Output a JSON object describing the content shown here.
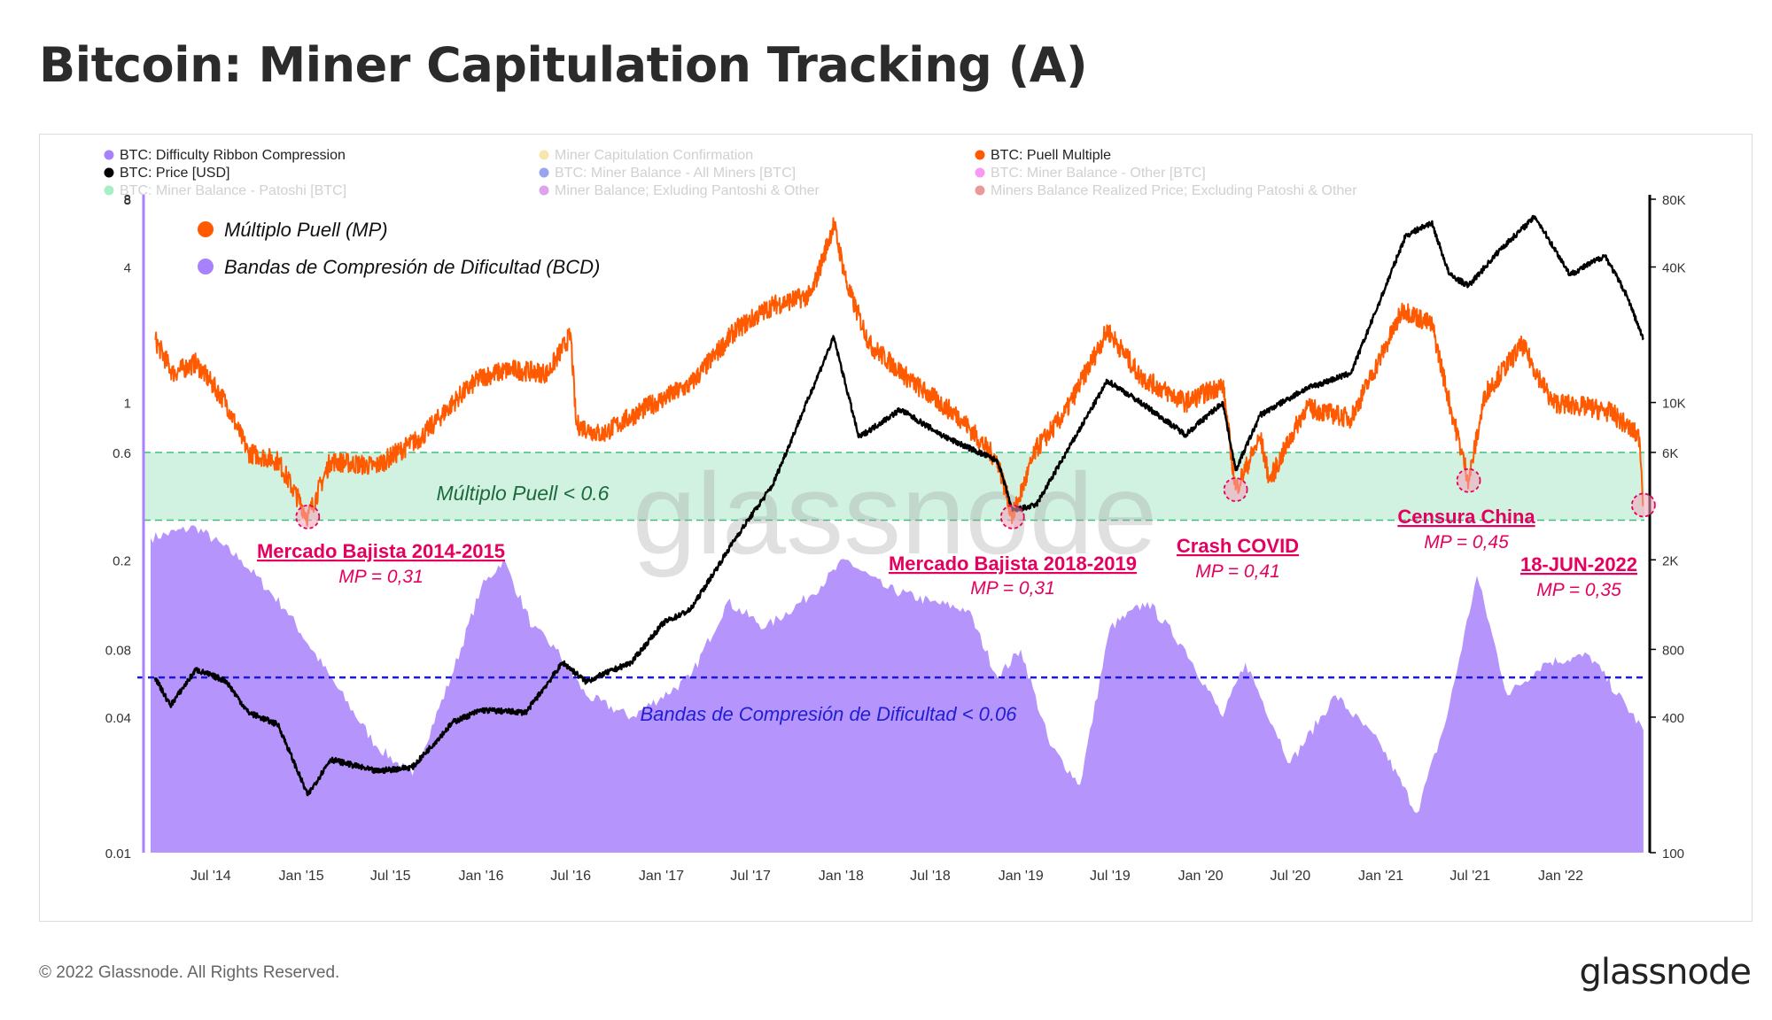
{
  "title": "Bitcoin: Miner Capitulation Tracking (A)",
  "footer": {
    "copyright": "© 2022 Glassnode. All Rights Reserved.",
    "logo": "glassnode"
  },
  "colors": {
    "puell": "#ff5a00",
    "price": "#000000",
    "ribbon": "#a881fc",
    "band_fill": "#c9f0dc",
    "band_line": "#3fbf7f",
    "ribbon_threshold": "#1a1ad6",
    "annotation": "#e5005f",
    "puell_band_text": "#1d6a3d",
    "ribbon_text": "#1f1fd0"
  },
  "chart_data": {
    "type": "line",
    "legend_location": "top",
    "legend": [
      {
        "label": "BTC: Difficulty Ribbon Compression",
        "color": "#a881fc",
        "faded": false
      },
      {
        "label": "Miner Capitulation Confirmation",
        "color": "#f2c94c",
        "faded": true
      },
      {
        "label": "BTC: Puell Multiple",
        "color": "#ff5a00",
        "faded": false
      },
      {
        "label": "BTC: Price [USD]",
        "color": "#000000",
        "faded": false
      },
      {
        "label": "BTC: Miner Balance - All Miners [BTC]",
        "color": "#1a3cd6",
        "faded": true
      },
      {
        "label": "BTC: Miner Balance - Other [BTC]",
        "color": "#f51ee5",
        "faded": true
      },
      {
        "label": "BTC: Miner Balance - Patoshi [BTC]",
        "color": "#3ddc84",
        "faded": true
      },
      {
        "label": "Miner Balance; Exluding Pantoshi & Other",
        "color": "#b038d6",
        "faded": true
      },
      {
        "label": "Miners Balance Realized Price; Excluding Patoshi & Other",
        "color": "#d11f1f",
        "faded": true
      }
    ],
    "inset_legend": [
      {
        "label": "Múltiplo Puell (MP)",
        "color": "#ff5a00"
      },
      {
        "label": "Bandas de Compresión de Dificultad  (BCD)",
        "color": "#a881fc"
      }
    ],
    "x_ticks": [
      "Jul '14",
      "Jan '15",
      "Jul '15",
      "Jan '16",
      "Jul '16",
      "Jan '17",
      "Jul '17",
      "Jan '18",
      "Jul '18",
      "Jan '19",
      "Jul '19",
      "Jan '20",
      "Jul '20",
      "Jan '21",
      "Jul '21",
      "Jan '22"
    ],
    "x_range": [
      "2014-03-01",
      "2022-06-20"
    ],
    "y_left": {
      "scale": "log",
      "range": [
        0.01,
        8
      ],
      "ticks": [
        {
          "v": 8,
          "label": "8"
        },
        {
          "v": 4,
          "label": "4"
        },
        {
          "v": 1,
          "label": "1"
        },
        {
          "v": 0.6,
          "label": "0.6"
        },
        {
          "v": 0.2,
          "label": "0.2"
        },
        {
          "v": 0.08,
          "label": "0.08"
        },
        {
          "v": 0.04,
          "label": "0.04"
        },
        {
          "v": 0.01,
          "label": "0.01"
        }
      ]
    },
    "y_right": {
      "scale": "log",
      "range": [
        100,
        80000
      ],
      "ticks": [
        {
          "v": 80000,
          "label": "80K"
        },
        {
          "v": 40000,
          "label": "40K"
        },
        {
          "v": 10000,
          "label": "10K"
        },
        {
          "v": 6000,
          "label": "6K"
        },
        {
          "v": 2000,
          "label": "2K"
        },
        {
          "v": 800,
          "label": "800"
        },
        {
          "v": 400,
          "label": "400"
        },
        {
          "v": 100,
          "label": "100"
        }
      ]
    },
    "puell_band": {
      "range": [
        0.3,
        0.6
      ],
      "label": "Múltiplo Puell < 0.6"
    },
    "ribbon_threshold": {
      "value": 0.06,
      "label": "Bandas de Compresión de Dificultad < 0.06"
    },
    "watermark": "glassnode",
    "series": [
      {
        "name": "BTC: Puell Multiple",
        "axis": "left",
        "points": [
          [
            "2014-03-10",
            1.9
          ],
          [
            "2014-04-15",
            1.35
          ],
          [
            "2014-06-01",
            1.5
          ],
          [
            "2014-08-01",
            1.0
          ],
          [
            "2014-09-15",
            0.6
          ],
          [
            "2014-11-15",
            0.55
          ],
          [
            "2015-01-14",
            0.31
          ],
          [
            "2015-03-01",
            0.55
          ],
          [
            "2015-06-01",
            0.52
          ],
          [
            "2015-09-01",
            0.7
          ],
          [
            "2015-11-15",
            1.05
          ],
          [
            "2016-01-01",
            1.3
          ],
          [
            "2016-03-01",
            1.4
          ],
          [
            "2016-05-15",
            1.35
          ],
          [
            "2016-07-01",
            2.0
          ],
          [
            "2016-07-12",
            0.8
          ],
          [
            "2016-09-01",
            0.72
          ],
          [
            "2016-12-01",
            0.95
          ],
          [
            "2017-03-01",
            1.2
          ],
          [
            "2017-06-01",
            2.1
          ],
          [
            "2017-08-15",
            2.7
          ],
          [
            "2017-11-01",
            3.0
          ],
          [
            "2017-12-17",
            6.2
          ],
          [
            "2018-01-15",
            3.2
          ],
          [
            "2018-03-01",
            1.8
          ],
          [
            "2018-06-01",
            1.2
          ],
          [
            "2018-09-01",
            0.85
          ],
          [
            "2018-11-15",
            0.55
          ],
          [
            "2018-12-15",
            0.31
          ],
          [
            "2019-02-01",
            0.62
          ],
          [
            "2019-04-01",
            0.9
          ],
          [
            "2019-06-26",
            2.1
          ],
          [
            "2019-09-01",
            1.3
          ],
          [
            "2019-12-01",
            1.0
          ],
          [
            "2020-02-15",
            1.2
          ],
          [
            "2020-03-12",
            0.41
          ],
          [
            "2020-05-01",
            0.7
          ],
          [
            "2020-05-20",
            0.45
          ],
          [
            "2020-08-01",
            0.95
          ],
          [
            "2020-11-01",
            0.85
          ],
          [
            "2021-01-01",
            1.6
          ],
          [
            "2021-02-15",
            2.6
          ],
          [
            "2021-04-15",
            2.2
          ],
          [
            "2021-05-20",
            1.0
          ],
          [
            "2021-06-28",
            0.45
          ],
          [
            "2021-08-01",
            1.1
          ],
          [
            "2021-10-15",
            1.8
          ],
          [
            "2021-12-15",
            1.0
          ],
          [
            "2022-03-01",
            0.95
          ],
          [
            "2022-04-15",
            0.9
          ],
          [
            "2022-06-10",
            0.7
          ],
          [
            "2022-06-18",
            0.35
          ]
        ]
      },
      {
        "name": "BTC: Price [USD]",
        "axis": "right",
        "points": [
          [
            "2014-03-10",
            600
          ],
          [
            "2014-04-10",
            450
          ],
          [
            "2014-06-01",
            650
          ],
          [
            "2014-08-01",
            580
          ],
          [
            "2014-09-15",
            420
          ],
          [
            "2014-11-15",
            370
          ],
          [
            "2015-01-14",
            180
          ],
          [
            "2015-03-01",
            260
          ],
          [
            "2015-06-01",
            230
          ],
          [
            "2015-08-15",
            240
          ],
          [
            "2015-11-05",
            380
          ],
          [
            "2016-01-01",
            430
          ],
          [
            "2016-04-01",
            420
          ],
          [
            "2016-06-15",
            700
          ],
          [
            "2016-08-01",
            575
          ],
          [
            "2016-11-01",
            700
          ],
          [
            "2017-01-05",
            1050
          ],
          [
            "2017-03-01",
            1200
          ],
          [
            "2017-06-01",
            2500
          ],
          [
            "2017-08-15",
            4300
          ],
          [
            "2017-12-17",
            19500
          ],
          [
            "2018-02-06",
            7000
          ],
          [
            "2018-05-01",
            9300
          ],
          [
            "2018-08-01",
            7000
          ],
          [
            "2018-11-15",
            5500
          ],
          [
            "2018-12-15",
            3300
          ],
          [
            "2019-02-01",
            3500
          ],
          [
            "2019-06-26",
            12500
          ],
          [
            "2019-09-01",
            10000
          ],
          [
            "2019-12-01",
            7200
          ],
          [
            "2020-02-15",
            10000
          ],
          [
            "2020-03-12",
            5000
          ],
          [
            "2020-05-01",
            8800
          ],
          [
            "2020-08-01",
            11500
          ],
          [
            "2020-11-01",
            13500
          ],
          [
            "2021-01-01",
            29000
          ],
          [
            "2021-02-20",
            55000
          ],
          [
            "2021-04-14",
            63000
          ],
          [
            "2021-05-20",
            37000
          ],
          [
            "2021-06-28",
            33000
          ],
          [
            "2021-09-01",
            48000
          ],
          [
            "2021-11-10",
            67000
          ],
          [
            "2022-01-20",
            37000
          ],
          [
            "2022-04-01",
            45000
          ],
          [
            "2022-05-15",
            30000
          ],
          [
            "2022-06-18",
            19000
          ]
        ]
      },
      {
        "name": "BTC: Difficulty Ribbon Compression",
        "axis": "left",
        "type": "area",
        "points": [
          [
            "2014-03-01",
            0.25
          ],
          [
            "2014-06-01",
            0.28
          ],
          [
            "2014-09-01",
            0.2
          ],
          [
            "2014-12-01",
            0.12
          ],
          [
            "2015-03-01",
            0.06
          ],
          [
            "2015-06-01",
            0.03
          ],
          [
            "2015-08-15",
            0.022
          ],
          [
            "2015-11-01",
            0.06
          ],
          [
            "2016-01-01",
            0.15
          ],
          [
            "2016-02-15",
            0.2
          ],
          [
            "2016-04-15",
            0.1
          ],
          [
            "2016-06-01",
            0.08
          ],
          [
            "2016-08-01",
            0.05
          ],
          [
            "2016-11-01",
            0.04
          ],
          [
            "2017-03-01",
            0.06
          ],
          [
            "2017-05-15",
            0.13
          ],
          [
            "2017-08-01",
            0.1
          ],
          [
            "2017-11-01",
            0.14
          ],
          [
            "2018-01-10",
            0.2
          ],
          [
            "2018-04-01",
            0.15
          ],
          [
            "2018-07-01",
            0.13
          ],
          [
            "2018-09-15",
            0.12
          ],
          [
            "2018-11-15",
            0.06
          ],
          [
            "2019-01-01",
            0.08
          ],
          [
            "2019-03-01",
            0.03
          ],
          [
            "2019-05-01",
            0.02
          ],
          [
            "2019-07-01",
            0.1
          ],
          [
            "2019-09-15",
            0.13
          ],
          [
            "2019-12-01",
            0.08
          ],
          [
            "2020-02-15",
            0.04
          ],
          [
            "2020-04-01",
            0.07
          ],
          [
            "2020-07-01",
            0.025
          ],
          [
            "2020-10-01",
            0.05
          ],
          [
            "2021-01-01",
            0.03
          ],
          [
            "2021-03-15",
            0.015
          ],
          [
            "2021-05-15",
            0.04
          ],
          [
            "2021-07-15",
            0.17
          ],
          [
            "2021-09-15",
            0.05
          ],
          [
            "2021-12-01",
            0.07
          ],
          [
            "2022-03-01",
            0.075
          ],
          [
            "2022-06-18",
            0.035
          ]
        ]
      }
    ],
    "annotations": [
      {
        "id": "bear-2014",
        "title": "Mercado Bajista 2014-2015",
        "sub": "MP = 0,31",
        "date": "2015-01-14",
        "value": 0.31
      },
      {
        "id": "bear-2018",
        "title": "Mercado Bajista 2018-2019",
        "sub": "MP = 0,31",
        "date": "2018-12-15",
        "value": 0.31
      },
      {
        "id": "covid",
        "title": "Crash COVID",
        "sub": "MP = 0,41",
        "date": "2020-03-12",
        "value": 0.41
      },
      {
        "id": "china",
        "title": "Censura China",
        "sub": "MP = 0,45",
        "date": "2021-06-28",
        "value": 0.45
      },
      {
        "id": "jun2022",
        "title": "18-JUN-2022",
        "sub": "MP = 0,35",
        "date": "2022-06-18",
        "value": 0.35
      }
    ]
  }
}
